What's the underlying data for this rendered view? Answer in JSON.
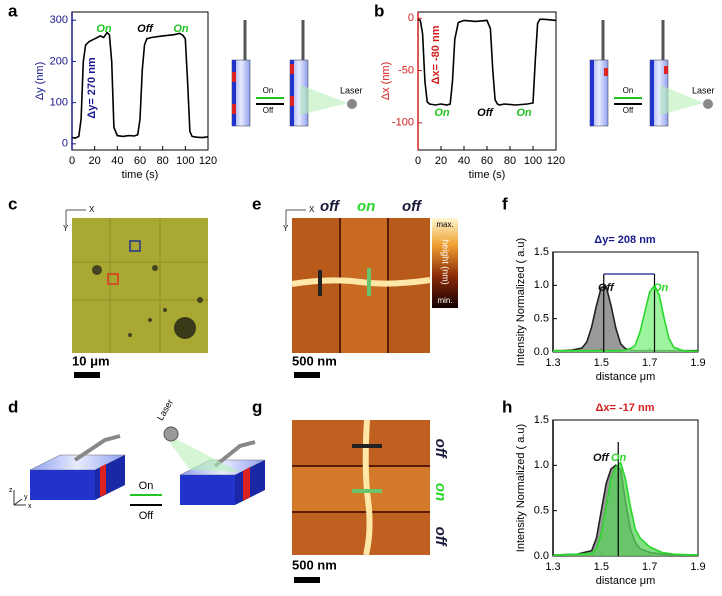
{
  "chart_data": [
    {
      "type": "line",
      "x_label": "time (s)",
      "y_label": "Δy (nm)",
      "axis_color": "#1a1a8c",
      "xlim": [
        0,
        120
      ],
      "ylim": [
        -15,
        320
      ],
      "xticks": [
        0,
        20,
        40,
        60,
        80,
        100,
        120
      ],
      "yticks": [
        0,
        100,
        200,
        300
      ],
      "x": [
        0,
        3,
        6,
        8,
        10,
        12,
        15,
        20,
        25,
        28,
        31,
        33,
        35,
        37,
        40,
        45,
        50,
        55,
        58,
        60,
        62,
        64,
        66,
        70,
        80,
        90,
        95,
        98,
        100,
        102,
        104,
        106,
        110,
        115,
        120
      ],
      "series": [
        {
          "color": "#000000",
          "values": [
            15,
            14,
            18,
            60,
            200,
            240,
            248,
            255,
            262,
            258,
            270,
            265,
            200,
            40,
            20,
            18,
            20,
            19,
            22,
            60,
            180,
            240,
            255,
            258,
            262,
            265,
            268,
            263,
            255,
            150,
            30,
            18,
            16,
            15,
            17
          ]
        }
      ],
      "annotations": [
        {
          "text": "On",
          "color": "#22c422"
        },
        {
          "text": "Off",
          "color": "#000000"
        },
        {
          "text": "On",
          "color": "#22c422"
        },
        {
          "text": "Δy= 270 nm",
          "color": "#1a1a8c"
        }
      ]
    },
    {
      "type": "line",
      "x_label": "time (s)",
      "y_label": "Δx (nm)",
      "axis_color": "#d42020",
      "xlim": [
        0,
        120
      ],
      "ylim": [
        -126,
        6
      ],
      "xticks": [
        0,
        20,
        40,
        60,
        80,
        100,
        120
      ],
      "yticks": [
        0,
        -50,
        -100
      ],
      "x": [
        0,
        2,
        4,
        6,
        8,
        10,
        15,
        20,
        25,
        28,
        30,
        32,
        35,
        40,
        50,
        60,
        63,
        65,
        67,
        69,
        71,
        75,
        85,
        95,
        100,
        102,
        104,
        106,
        110,
        120
      ],
      "series": [
        {
          "color": "#000000",
          "values": [
            -1,
            -2,
            -15,
            -60,
            -80,
            -82,
            -83,
            -82,
            -83,
            -82,
            -60,
            -20,
            -4,
            -2,
            -3,
            -2,
            -10,
            -50,
            -78,
            -82,
            -83,
            -82,
            -83,
            -82,
            -81,
            -40,
            -5,
            -1,
            -1,
            -2
          ]
        }
      ],
      "annotations": [
        {
          "text": "Δx= -80 nm",
          "color": "#d42020"
        },
        {
          "text": "On",
          "color": "#22c422"
        },
        {
          "text": "Off",
          "color": "#000000"
        },
        {
          "text": "On",
          "color": "#22c422"
        }
      ]
    },
    {
      "type": "area",
      "x_label": "distance μm",
      "y_label": "Intensity Normalized ( a.u)",
      "axis_color": "#000000",
      "xlim": [
        1.3,
        1.9
      ],
      "ylim": [
        0,
        1.5
      ],
      "xticks": [
        1.3,
        1.5,
        1.7,
        1.9
      ],
      "yticks": [
        {
          "value": 0,
          "label": "0.0"
        },
        0.5,
        {
          "value": 1,
          "label": "1.0"
        },
        1.5
      ],
      "x": [
        1.3,
        1.34,
        1.38,
        1.42,
        1.44,
        1.46,
        1.48,
        1.5,
        1.52,
        1.54,
        1.56,
        1.58,
        1.6,
        1.62,
        1.64,
        1.66,
        1.68,
        1.7,
        1.72,
        1.74,
        1.76,
        1.78,
        1.8,
        1.84,
        1.9
      ],
      "series": [
        {
          "name": "Off",
          "color": "#222222",
          "fill": "#777777",
          "values": [
            0.02,
            0.02,
            0.03,
            0.06,
            0.15,
            0.38,
            0.7,
            0.97,
            0.98,
            0.7,
            0.36,
            0.12,
            0.05,
            0.03,
            0.02,
            0.02,
            0.02,
            0.02,
            0.02,
            0.02,
            0.02,
            0.02,
            0.02,
            0.02,
            0.02
          ]
        },
        {
          "name": "On",
          "color": "#2bd62b",
          "fill": "#7ef07e",
          "values": [
            0.02,
            0.02,
            0.02,
            0.02,
            0.02,
            0.02,
            0.02,
            0.02,
            0.02,
            0.02,
            0.02,
            0.02,
            0.03,
            0.05,
            0.1,
            0.3,
            0.6,
            0.9,
            1.0,
            0.85,
            0.5,
            0.2,
            0.07,
            0.02,
            0.01
          ]
        }
      ],
      "peak_lines": [
        1.51,
        1.72
      ],
      "annotations": [
        {
          "text": "Δy= 208 nm",
          "color": "#1a1a8c"
        }
      ]
    },
    {
      "type": "area",
      "x_label": "distance μm",
      "y_label": "Intensity Normalized ( a.u)",
      "axis_color": "#000000",
      "xlim": [
        1.3,
        1.9
      ],
      "ylim": [
        0,
        1.5
      ],
      "xticks": [
        1.3,
        1.5,
        1.7,
        1.9
      ],
      "yticks": [
        {
          "value": 0,
          "label": "0.0"
        },
        0.5,
        {
          "value": 1,
          "label": "1.0"
        },
        1.5
      ],
      "x": [
        1.3,
        1.4,
        1.46,
        1.48,
        1.5,
        1.52,
        1.54,
        1.56,
        1.58,
        1.6,
        1.62,
        1.64,
        1.66,
        1.7,
        1.75,
        1.8,
        1.9
      ],
      "series": [
        {
          "name": "Off",
          "color": "#222222",
          "fill": "#777777",
          "values": [
            0.01,
            0.02,
            0.06,
            0.2,
            0.5,
            0.8,
            0.96,
            1.0,
            0.95,
            0.6,
            0.3,
            0.15,
            0.08,
            0.04,
            0.02,
            0.01,
            0.01
          ]
        },
        {
          "name": "On",
          "color": "#2bd62b",
          "fill": "#5ad45a",
          "values": [
            0.01,
            0.02,
            0.03,
            0.08,
            0.25,
            0.55,
            0.85,
            0.98,
            1.03,
            0.85,
            0.55,
            0.3,
            0.2,
            0.1,
            0.04,
            0.02,
            0.01
          ]
        }
      ],
      "peak_lines": [
        1.57
      ],
      "annotations": [
        {
          "text": "Δx= -17 nm",
          "color": "#d42020"
        }
      ]
    }
  ],
  "panel_labels": [
    "a",
    "b",
    "c",
    "d",
    "e",
    "f",
    "g",
    "h"
  ],
  "insets": {
    "on": "On",
    "off": "Off",
    "laser": "Laser"
  },
  "panel_c": {
    "scale": "10 μm",
    "x_axis": "X",
    "y_axis": "Y"
  },
  "panel_d": {
    "laser": "Laser",
    "on": "On",
    "off": "Off",
    "axes": [
      "z",
      "x",
      "y"
    ]
  },
  "panel_e": {
    "scale": "500 nm",
    "states": [
      "off",
      "on",
      "off"
    ],
    "colorbar": [
      "max.",
      "height (nm)",
      "min."
    ],
    "x_axis": "X",
    "y_axis": "Y"
  },
  "panel_g": {
    "scale": "500 nm",
    "states": [
      "off",
      "on",
      "off"
    ]
  }
}
